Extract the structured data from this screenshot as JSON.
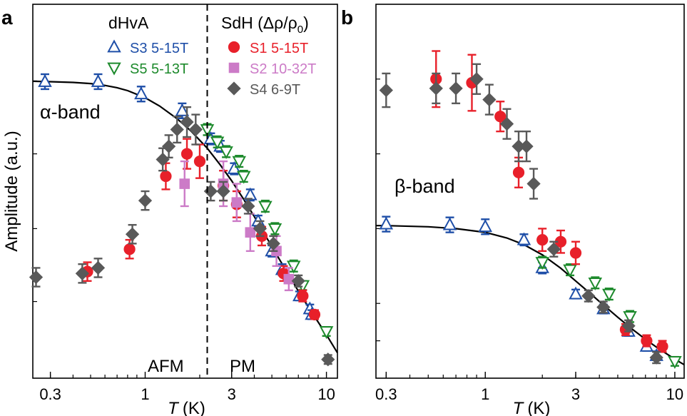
{
  "chart_data": [
    {
      "type": "scatter",
      "panel_label": "a",
      "xlabel": "T",
      "xlabel_unit": "(K)",
      "ylabel": "Amplitude (a.u.)",
      "xscale": "log",
      "xlim": [
        0.24,
        11.5
      ],
      "ylim": [
        0,
        1
      ],
      "xticks": [
        {
          "v": 0.3,
          "label": "0.3"
        },
        {
          "v": 1,
          "label": "1"
        },
        {
          "v": 3,
          "label": "3"
        },
        {
          "v": 10,
          "label": "10"
        }
      ],
      "yticks": [
        0.205,
        0.4,
        0.6,
        0.795
      ],
      "legend_left_title": "dHvA",
      "legend_right_title": "SdH (Δρ/ρ",
      "legend_right_sub": "0",
      "legend_right_close": ")",
      "annotations": {
        "band": "α-band",
        "afm": "AFM",
        "pm": "PM"
      },
      "phase_boundary_T": 2.2,
      "series": [
        {
          "name": "S3 5-15T",
          "marker": "triangle-up",
          "color": "#1f4fa8",
          "filled": false,
          "points": [
            [
              0.28,
              0.793,
              0.02
            ],
            [
              0.55,
              0.793,
              0.02
            ],
            [
              0.95,
              0.76,
              0.02
            ],
            [
              1.6,
              0.715,
              0.02
            ],
            [
              2.3,
              0.64,
              0.015
            ],
            [
              2.6,
              0.62,
              0.015
            ],
            [
              3.1,
              0.56,
              0.015
            ],
            [
              3.8,
              0.49,
              0.015
            ],
            [
              4.2,
              0.42,
              0.015
            ],
            [
              5,
              0.34,
              0.015
            ],
            [
              5.7,
              0.29,
              0.015
            ],
            [
              7.1,
              0.22,
              0.012
            ],
            [
              8.1,
              0.185,
              0.012
            ],
            [
              8.3,
              0.17,
              0.012
            ]
          ]
        },
        {
          "name": "S5 5-13T",
          "marker": "triangle-down",
          "color": "#1d8a2c",
          "filled": false,
          "points": [
            [
              2.2,
              0.665,
              0.015
            ],
            [
              2.5,
              0.632,
              0.015
            ],
            [
              2.8,
              0.606,
              0.015
            ],
            [
              3.3,
              0.58,
              0.015
            ],
            [
              3.5,
              0.54,
              0.015
            ],
            [
              4.6,
              0.46,
              0.015
            ],
            [
              5.2,
              0.4,
              0.015
            ],
            [
              6.6,
              0.3,
              0.015
            ],
            [
              7.4,
              0.248,
              0.012
            ],
            [
              10,
              0.125,
              0.012
            ]
          ]
        },
        {
          "name": "S1 5-15T",
          "marker": "circle",
          "color": "#e8202a",
          "filled": true,
          "points": [
            [
              0.48,
              0.285,
              0.025
            ],
            [
              0.82,
              0.345,
              0.025
            ],
            [
              1.3,
              0.54,
              0.035
            ],
            [
              1.7,
              0.6,
              0.04
            ],
            [
              2.0,
              0.58,
              0.045
            ],
            [
              2.7,
              0.515,
              0.04
            ],
            [
              3.2,
              0.465,
              0.035
            ],
            [
              4.4,
              0.38,
              0.025
            ],
            [
              5.8,
              0.28,
              0.02
            ],
            [
              7.4,
              0.22,
              0.015
            ],
            [
              8.6,
              0.17,
              0.012
            ]
          ]
        },
        {
          "name": "S2 10-32T",
          "marker": "square",
          "color": "#cc7bc7",
          "filled": true,
          "points": [
            [
              1.65,
              0.52,
              0.06
            ],
            [
              2.7,
              0.52,
              0.06
            ],
            [
              3.2,
              0.47,
              0.05
            ],
            [
              3.8,
              0.39,
              0.05
            ],
            [
              5.3,
              0.34,
              0.04
            ],
            [
              6.2,
              0.265,
              0.03
            ]
          ]
        },
        {
          "name": "S4 6-9T",
          "marker": "diamond",
          "color": "#595959",
          "filled": true,
          "points": [
            [
              0.25,
              0.27,
              0.025
            ],
            [
              0.45,
              0.28,
              0.025
            ],
            [
              0.55,
              0.295,
              0.025
            ],
            [
              0.85,
              0.385,
              0.025
            ],
            [
              1.0,
              0.475,
              0.025
            ],
            [
              1.25,
              0.585,
              0.03
            ],
            [
              1.35,
              0.62,
              0.03
            ],
            [
              1.5,
              0.665,
              0.035
            ],
            [
              1.7,
              0.685,
              0.04
            ],
            [
              1.9,
              0.665,
              0.04
            ],
            [
              2.3,
              0.5,
              0.025
            ],
            [
              2.7,
              0.5,
              0.025
            ],
            [
              3.7,
              0.46,
              0.02
            ],
            [
              4.3,
              0.4,
              0.02
            ],
            [
              5.1,
              0.36,
              0.02
            ],
            [
              7.0,
              0.26,
              0.015
            ],
            [
              10.2,
              0.05,
              0.012
            ]
          ]
        }
      ],
      "fit": [
        [
          0.24,
          0.794
        ],
        [
          0.3,
          0.793
        ],
        [
          0.4,
          0.791
        ],
        [
          0.5,
          0.788
        ],
        [
          0.6,
          0.783
        ],
        [
          0.7,
          0.777
        ],
        [
          0.8,
          0.769
        ],
        [
          1.0,
          0.75
        ],
        [
          1.2,
          0.728
        ],
        [
          1.5,
          0.694
        ],
        [
          1.8,
          0.66
        ],
        [
          2.2,
          0.615
        ],
        [
          2.6,
          0.57
        ],
        [
          3.0,
          0.528
        ],
        [
          3.5,
          0.478
        ],
        [
          4,
          0.432
        ],
        [
          5,
          0.352
        ],
        [
          6,
          0.287
        ],
        [
          7,
          0.233
        ],
        [
          8,
          0.188
        ],
        [
          9,
          0.15
        ],
        [
          10,
          0.116
        ],
        [
          11.5,
          0.068
        ]
      ]
    },
    {
      "type": "scatter",
      "panel_label": "b",
      "xlabel": "T",
      "xlabel_unit": "(K)",
      "xscale": "log",
      "xlim": [
        0.265,
        11.2
      ],
      "ylim": [
        0,
        1
      ],
      "xticks": [
        {
          "v": 0.3,
          "label": "0.3"
        },
        {
          "v": 1,
          "label": "1"
        },
        {
          "v": 3,
          "label": "3"
        },
        {
          "v": 10,
          "label": "10"
        }
      ],
      "yticks": [
        0.1,
        0.2,
        0.4,
        0.6,
        0.8
      ],
      "annotations": {
        "band": "β-band"
      },
      "series": [
        {
          "name": "S3",
          "marker": "triangle-up",
          "color": "#1f4fa8",
          "filled": false,
          "points": [
            [
              0.3,
              0.412,
              0.02
            ],
            [
              0.65,
              0.41,
              0.02
            ],
            [
              1.0,
              0.405,
              0.02
            ],
            [
              1.6,
              0.37,
              0.015
            ],
            [
              2.0,
              0.295,
              0.015
            ],
            [
              3.0,
              0.225,
              0.012
            ],
            [
              4.2,
              0.185,
              0.012
            ],
            [
              5.7,
              0.125,
              0.012
            ],
            [
              7.1,
              0.085,
              0.012
            ],
            [
              8.0,
              0.06,
              0.012
            ]
          ]
        },
        {
          "name": "S5",
          "marker": "triangle-down",
          "color": "#1d8a2c",
          "filled": false,
          "points": [
            [
              2.0,
              0.31,
              0.015
            ],
            [
              2.8,
              0.29,
              0.015
            ],
            [
              3.8,
              0.255,
              0.015
            ],
            [
              4.5,
              0.225,
              0.015
            ],
            [
              5.8,
              0.165,
              0.015
            ],
            [
              10,
              0.045,
              0.012
            ]
          ]
        },
        {
          "name": "S1",
          "marker": "circle",
          "color": "#e8202a",
          "filled": true,
          "points": [
            [
              0.55,
              0.8,
              0.075
            ],
            [
              0.85,
              0.79,
              0.075
            ],
            [
              1.2,
              0.7,
              0.04
            ],
            [
              1.5,
              0.55,
              0.04
            ],
            [
              2.0,
              0.37,
              0.03
            ],
            [
              2.5,
              0.365,
              0.03
            ],
            [
              3.0,
              0.335,
              0.03
            ],
            [
              5.5,
              0.13,
              0.015
            ],
            [
              7.1,
              0.1,
              0.015
            ],
            [
              8.6,
              0.085,
              0.015
            ]
          ]
        },
        {
          "name": "S4",
          "marker": "diamond",
          "color": "#595959",
          "filled": true,
          "points": [
            [
              0.3,
              0.77,
              0.045
            ],
            [
              0.55,
              0.775,
              0.04
            ],
            [
              0.7,
              0.775,
              0.04
            ],
            [
              0.9,
              0.8,
              0.04
            ],
            [
              1.05,
              0.745,
              0.04
            ],
            [
              1.3,
              0.68,
              0.04
            ],
            [
              1.5,
              0.62,
              0.04
            ],
            [
              1.65,
              0.62,
              0.04
            ],
            [
              1.8,
              0.52,
              0.04
            ],
            [
              2.3,
              0.345,
              0.02
            ],
            [
              3.5,
              0.22,
              0.015
            ],
            [
              4.2,
              0.19,
              0.015
            ],
            [
              5.7,
              0.14,
              0.015
            ],
            [
              8.0,
              0.055,
              0.015
            ]
          ]
        }
      ],
      "fit": [
        [
          0.265,
          0.408
        ],
        [
          0.3,
          0.408
        ],
        [
          0.5,
          0.405
        ],
        [
          0.7,
          0.4
        ],
        [
          1.0,
          0.39
        ],
        [
          1.3,
          0.375
        ],
        [
          1.6,
          0.357
        ],
        [
          2.0,
          0.33
        ],
        [
          2.5,
          0.294
        ],
        [
          3.0,
          0.26
        ],
        [
          3.5,
          0.231
        ],
        [
          4,
          0.205
        ],
        [
          5,
          0.163
        ],
        [
          6,
          0.13
        ],
        [
          7,
          0.104
        ],
        [
          8,
          0.083
        ],
        [
          9,
          0.066
        ],
        [
          10,
          0.051
        ],
        [
          11.2,
          0.036
        ]
      ]
    }
  ]
}
